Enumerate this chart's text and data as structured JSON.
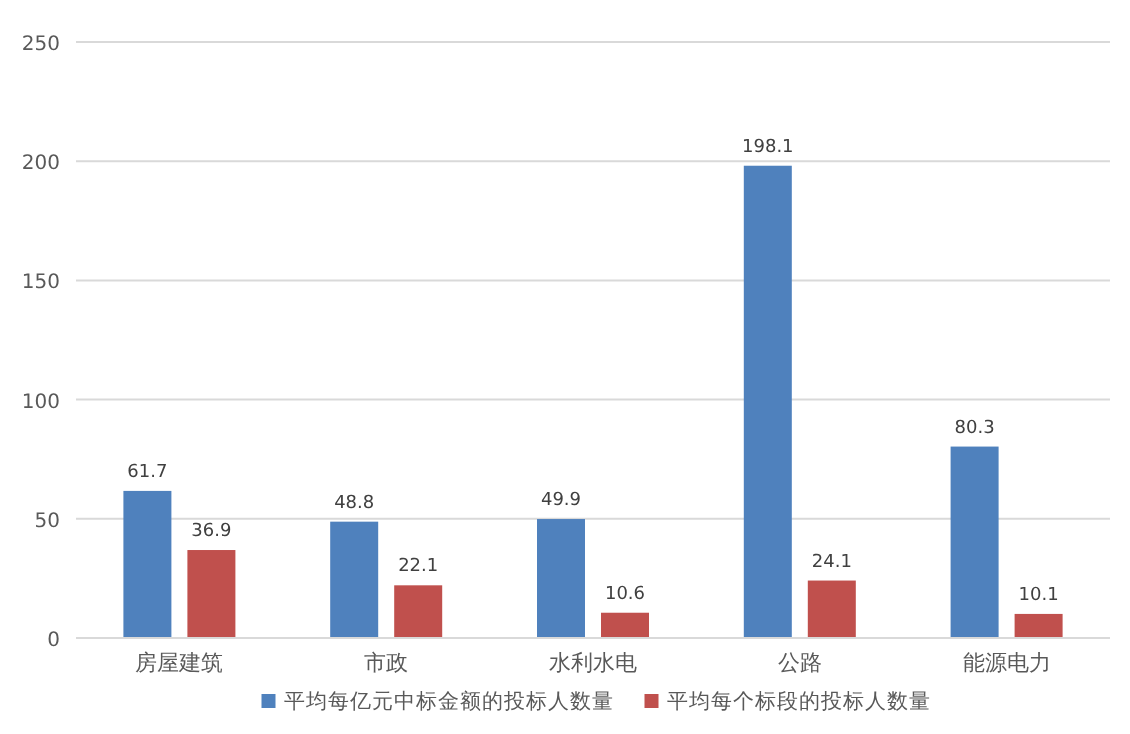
{
  "chart_data": {
    "type": "bar",
    "categories": [
      "房屋建筑",
      "市政",
      "水利水电",
      "公路",
      "能源电力"
    ],
    "series": [
      {
        "name": "平均每亿元中标金额的投标人数量",
        "color": "#4f81bd",
        "values": [
          61.7,
          48.8,
          49.9,
          198.1,
          80.3
        ]
      },
      {
        "name": "平均每个标段的投标人数量",
        "color": "#c0504d",
        "values": [
          36.9,
          22.1,
          10.6,
          24.1,
          10.1
        ]
      }
    ],
    "ylim": [
      0,
      250
    ],
    "yticks": [
      0,
      50,
      100,
      150,
      200,
      250
    ],
    "grid": "y",
    "legend": "bottom",
    "data_labels": true
  }
}
